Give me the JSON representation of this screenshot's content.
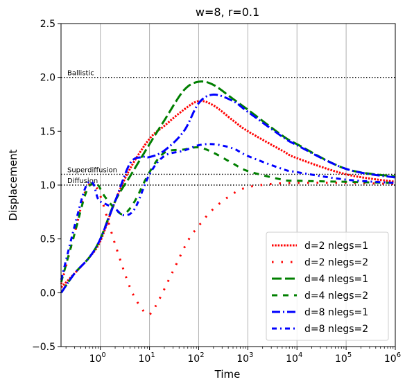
{
  "chart_data": {
    "type": "line",
    "title": "w=8, r=0.1",
    "xlabel": "Time",
    "ylabel": "Displacement",
    "xscale": "log",
    "xlim_log10": [
      -0.8,
      6
    ],
    "ylim": [
      -0.5,
      2.5
    ],
    "grid": "x-only",
    "legend_placement": "lower-right",
    "y_ticks": [
      "−0.5",
      "0.0",
      "0.5",
      "1.0",
      "1.5",
      "2.0",
      "2.5"
    ],
    "x_ticks": [
      {
        "base": "10",
        "exp": "0"
      },
      {
        "base": "10",
        "exp": "1"
      },
      {
        "base": "10",
        "exp": "2"
      },
      {
        "base": "10",
        "exp": "3"
      },
      {
        "base": "10",
        "exp": "4"
      },
      {
        "base": "10",
        "exp": "5"
      },
      {
        "base": "10",
        "exp": "6"
      }
    ],
    "reference_lines": [
      {
        "label": "Ballistic",
        "y": 2.0
      },
      {
        "label": "Superdiffusion",
        "y": 1.1
      },
      {
        "label": "Diffusion",
        "y": 1.0
      }
    ],
    "series": [
      {
        "name": "d=2 nlegs=1",
        "color": "#ff0000",
        "style": "dotted-dense",
        "x": [
          0.16,
          0.3,
          0.6,
          1,
          2,
          4,
          10,
          20,
          50,
          100,
          200,
          500,
          1000,
          5000,
          10000,
          100000,
          1000000
        ],
        "y": [
          0.05,
          0.18,
          0.33,
          0.48,
          0.85,
          1.15,
          1.43,
          1.55,
          1.7,
          1.78,
          1.74,
          1.6,
          1.5,
          1.32,
          1.25,
          1.1,
          1.03
        ]
      },
      {
        "name": "d=2 nlegs=2",
        "color": "#ff0000",
        "style": "dotted-sparse",
        "x": [
          0.16,
          0.3,
          0.5,
          0.7,
          1,
          2,
          4,
          7,
          10,
          15,
          30,
          60,
          100,
          200,
          500,
          1000,
          3000,
          10000,
          100000,
          1000000
        ],
        "y": [
          0.08,
          0.55,
          0.95,
          1.0,
          0.9,
          0.45,
          0.05,
          -0.15,
          -0.2,
          -0.08,
          0.2,
          0.48,
          0.62,
          0.78,
          0.92,
          0.98,
          1.01,
          1.02,
          1.02,
          1.01
        ]
      },
      {
        "name": "d=4 nlegs=1",
        "color": "#007f00",
        "style": "dashed-long",
        "x": [
          0.16,
          0.3,
          0.6,
          1,
          2,
          4,
          10,
          20,
          50,
          100,
          200,
          500,
          1000,
          5000,
          10000,
          100000,
          1000000
        ],
        "y": [
          0.0,
          0.18,
          0.33,
          0.5,
          0.85,
          1.08,
          1.38,
          1.6,
          1.88,
          1.96,
          1.93,
          1.8,
          1.7,
          1.46,
          1.38,
          1.15,
          1.08
        ]
      },
      {
        "name": "d=4 nlegs=2",
        "color": "#007f00",
        "style": "dashed-short",
        "x": [
          0.16,
          0.3,
          0.5,
          0.7,
          0.9,
          1.2,
          2,
          3,
          5,
          10,
          20,
          50,
          100,
          200,
          500,
          1000,
          5000,
          10000,
          100000,
          1000000
        ],
        "y": [
          0.1,
          0.55,
          0.92,
          1.02,
          1.0,
          0.9,
          0.78,
          0.73,
          0.85,
          1.12,
          1.3,
          1.33,
          1.35,
          1.3,
          1.2,
          1.13,
          1.05,
          1.04,
          1.03,
          1.02
        ]
      },
      {
        "name": "d=8 nlegs=1",
        "color": "#0000ff",
        "style": "dashdot-long",
        "x": [
          0.16,
          0.3,
          0.6,
          1,
          2,
          4,
          7,
          10,
          20,
          50,
          100,
          200,
          500,
          1000,
          5000,
          10000,
          100000,
          1000000
        ],
        "y": [
          0.0,
          0.18,
          0.33,
          0.5,
          0.85,
          1.2,
          1.26,
          1.26,
          1.32,
          1.5,
          1.76,
          1.84,
          1.78,
          1.68,
          1.45,
          1.37,
          1.15,
          1.07
        ]
      },
      {
        "name": "d=8 nlegs=2",
        "color": "#0000ff",
        "style": "dashdot-short",
        "x": [
          0.16,
          0.3,
          0.5,
          0.7,
          0.9,
          1.2,
          2,
          3,
          5,
          10,
          20,
          50,
          100,
          200,
          500,
          1000,
          5000,
          10000,
          100000,
          1000000
        ],
        "y": [
          0.12,
          0.62,
          0.98,
          1.02,
          0.87,
          0.83,
          0.78,
          0.72,
          0.78,
          1.1,
          1.27,
          1.32,
          1.37,
          1.38,
          1.34,
          1.27,
          1.15,
          1.12,
          1.05,
          1.02
        ]
      }
    ]
  }
}
